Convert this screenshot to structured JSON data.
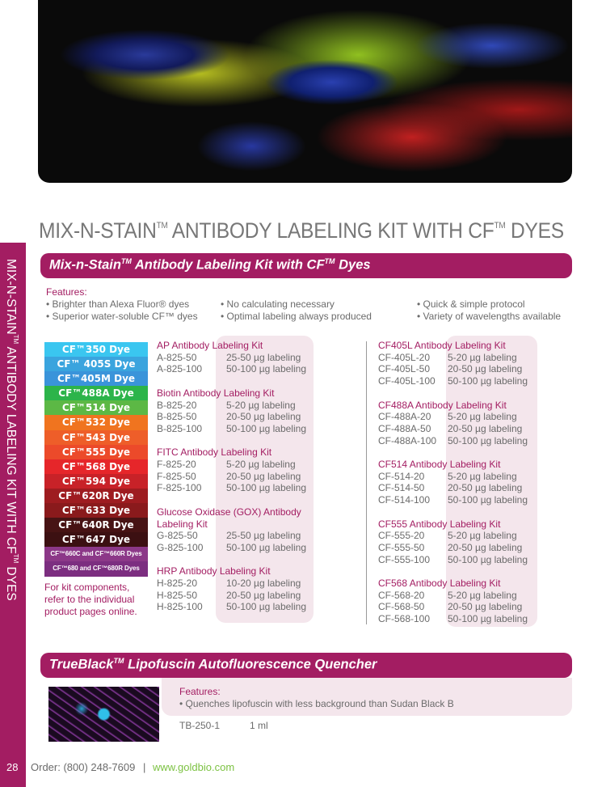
{
  "page_title": {
    "main": "MIX-N-STAIN",
    "tm": "TM",
    "mid": " ANTIBODY LABELING KIT WITH CF",
    "tm2": "TM",
    "end": " DYES"
  },
  "sidebar_text": {
    "a": "MIX-N-STAIN",
    "tm": "TM",
    "b": " ANTIBODY LABELING KIT WITH CF",
    "tm2": "TM",
    "c": " DYES"
  },
  "section1": {
    "title": "Mix-n-Stain",
    "tm": "TM",
    "title2": " Antibody Labeling Kit with CF",
    "tm2": "TM",
    "title3": " Dyes",
    "features_label": "Features:",
    "features": [
      "• Brighter than Alexa Fluor® dyes",
      "• Superior water-soluble CF™ dyes",
      "• No calculating necessary",
      "• Optimal labeling always produced",
      "• Quick & simple protocol",
      "• Variety of wavelengths available"
    ]
  },
  "dyes": [
    {
      "label": "CF™350 Dye",
      "color": "#3ac6f0"
    },
    {
      "label": "CF™ 405S Dye",
      "color": "#3aa4de"
    },
    {
      "label": "CF™405M Dye",
      "color": "#3a94da"
    },
    {
      "label": "CF™488A Dye",
      "color": "#2cb44a"
    },
    {
      "label": "CF™514 Dye",
      "color": "#5cb845"
    },
    {
      "label": "CF™532 Dye",
      "color": "#f0741f"
    },
    {
      "label": "CF™543 Dye",
      "color": "#ee5e29"
    },
    {
      "label": "CF™555 Dye",
      "color": "#ec4a2a"
    },
    {
      "label": "CF™568 Dye",
      "color": "#e6262a"
    },
    {
      "label": "CF™594 Dye",
      "color": "#c82228"
    },
    {
      "label": "CF™620R Dye",
      "color": "#9e1c20"
    },
    {
      "label": "CF™633 Dye",
      "color": "#8a1a1c"
    },
    {
      "label": "CF™640R Dye",
      "color": "#471314"
    },
    {
      "label": "CF™647 Dye",
      "color": "#3c1012"
    },
    {
      "label": "CF™660C and CF™660R Dyes",
      "color": "#8c3888"
    },
    {
      "label": "CF™680 and CF™680R Dyes",
      "color": "#7c2e80"
    }
  ],
  "dye_note": [
    "For kit components,",
    "refer to the individual",
    "product pages online."
  ],
  "kits_left": [
    {
      "name": "AP Antibody Labeling Kit",
      "items": [
        [
          "A-825-50",
          "25-50 µg labeling"
        ],
        [
          "A-825-100",
          "50-100 µg labeling"
        ]
      ]
    },
    {
      "name": "Biotin Antibody Labeling Kit",
      "items": [
        [
          "B-825-20",
          "5-20 µg labeling"
        ],
        [
          "B-825-50",
          "20-50 µg labeling"
        ],
        [
          "B-825-100",
          "50-100 µg labeling"
        ]
      ]
    },
    {
      "name": "FITC Antibody Labeling Kit",
      "items": [
        [
          "F-825-20",
          "5-20 µg labeling"
        ],
        [
          "F-825-50",
          "20-50 µg labeling"
        ],
        [
          "F-825-100",
          "50-100 µg labeling"
        ]
      ]
    },
    {
      "name": "Glucose Oxidase (GOX) Antibody Labeling Kit",
      "items": [
        [
          "G-825-50",
          "25-50 µg labeling"
        ],
        [
          "G-825-100",
          "50-100 µg labeling"
        ]
      ]
    },
    {
      "name": "HRP Antibody Labeling Kit",
      "items": [
        [
          "H-825-20",
          "10-20 µg labeling"
        ],
        [
          "H-825-50",
          "20-50 µg labeling"
        ],
        [
          "H-825-100",
          "50-100 µg labeling"
        ]
      ]
    }
  ],
  "kits_right": [
    {
      "name": "CF405L Antibody Labeling Kit",
      "items": [
        [
          "CF-405L-20",
          "5-20 µg labeling"
        ],
        [
          "CF-405L-50",
          "20-50 µg labeling"
        ],
        [
          "CF-405L-100",
          "50-100 µg labeling"
        ]
      ]
    },
    {
      "name": "CF488A Antibody Labeling Kit",
      "items": [
        [
          "CF-488A-20",
          "5-20 µg labeling"
        ],
        [
          "CF-488A-50",
          "20-50 µg labeling"
        ],
        [
          "CF-488A-100",
          "50-100 µg labeling"
        ]
      ]
    },
    {
      "name": "CF514 Antibody Labeling Kit",
      "items": [
        [
          "CF-514-20",
          "5-20 µg labeling"
        ],
        [
          "CF-514-50",
          "20-50 µg labeling"
        ],
        [
          "CF-514-100",
          "50-100 µg labeling"
        ]
      ]
    },
    {
      "name": "CF555 Antibody Labeling Kit",
      "items": [
        [
          "CF-555-20",
          "5-20 µg labeling"
        ],
        [
          "CF-555-50",
          "20-50 µg labeling"
        ],
        [
          "CF-555-100",
          "50-100 µg labeling"
        ]
      ]
    },
    {
      "name": "CF568 Antibody Labeling Kit",
      "items": [
        [
          "CF-568-20",
          "5-20 µg labeling"
        ],
        [
          "CF-568-50",
          "20-50 µg labeling"
        ],
        [
          "CF-568-100",
          "50-100 µg labeling"
        ]
      ]
    }
  ],
  "section2": {
    "title": "TrueBlack",
    "tm": "TM",
    "title2": " Lipofuscin Autofluorescence Quencher",
    "features_label": "Features:",
    "feature": "• Quenches lipofuscin with less background than Sudan Black B",
    "code": "TB-250-1",
    "size": "1 ml"
  },
  "footer": {
    "page": "28",
    "order": "Order: (800) 248-7609",
    "sep": "|",
    "url": "www.goldbio.com"
  }
}
